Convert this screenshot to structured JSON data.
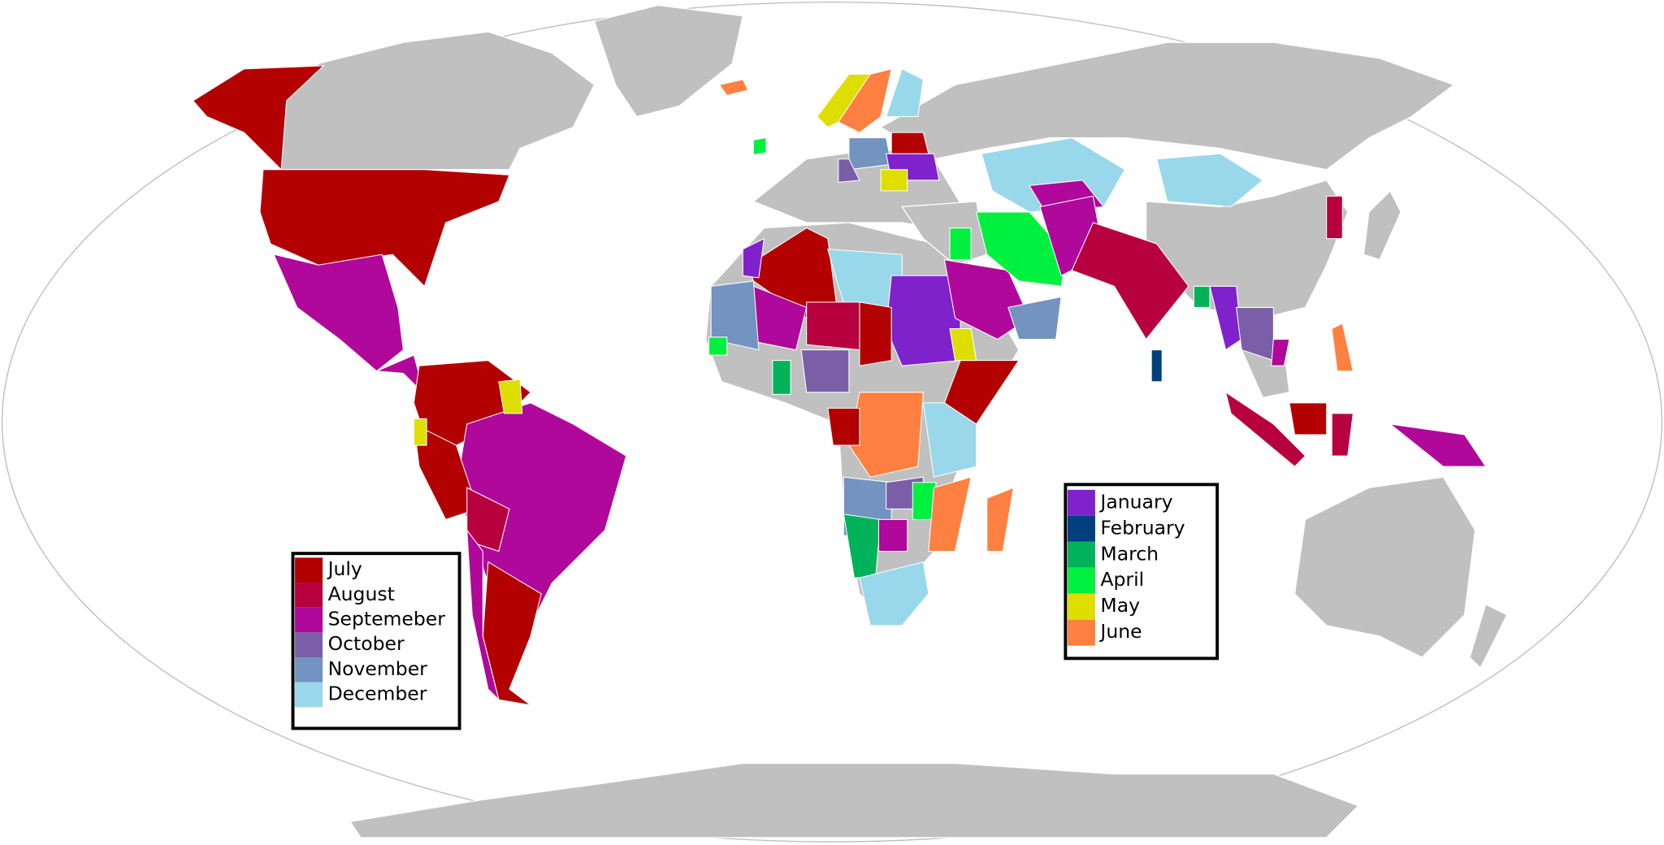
{
  "legends": [
    {
      "items": [
        {
          "label": "July",
          "color": "#b30000"
        },
        {
          "label": "August",
          "color": "#b8003f"
        },
        {
          "label": "Septemeber",
          "color": "#b0089a"
        },
        {
          "label": "October",
          "color": "#7b5ea8"
        },
        {
          "label": "November",
          "color": "#7393c0"
        },
        {
          "label": "December",
          "color": "#99d8ea"
        }
      ]
    },
    {
      "items": [
        {
          "label": "January",
          "color": "#8022cc"
        },
        {
          "label": "February",
          "color": "#003f7f"
        },
        {
          "label": "March",
          "color": "#00b35a"
        },
        {
          "label": "April",
          "color": "#00f040"
        },
        {
          "label": "May",
          "color": "#dede00"
        },
        {
          "label": "June",
          "color": "#ff8040"
        }
      ]
    }
  ]
}
